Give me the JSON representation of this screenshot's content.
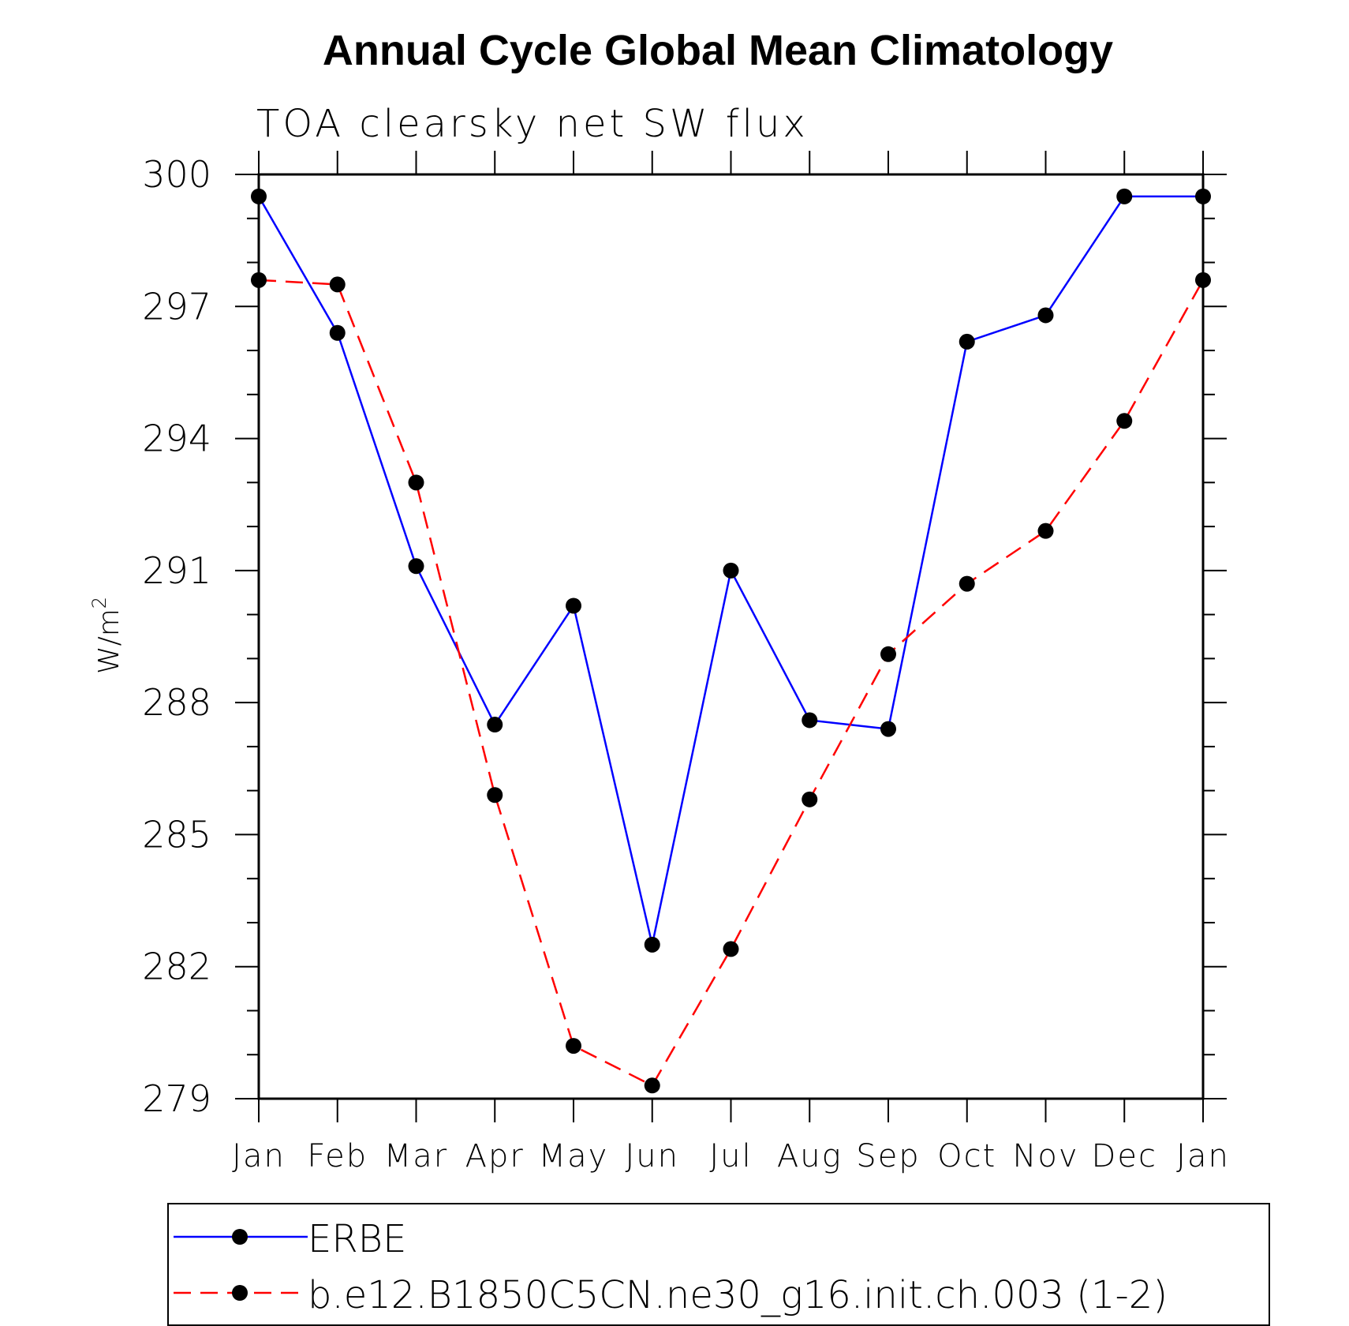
{
  "chart_data": {
    "type": "line",
    "title": "Annual Cycle Global Mean Climatology",
    "subtitle": "TOA clearsky net SW flux",
    "ylabel": "W/m",
    "ylabel_superscript": "2",
    "xlabel": "",
    "categories": [
      "Jan",
      "Feb",
      "Mar",
      "Apr",
      "May",
      "Jun",
      "Jul",
      "Aug",
      "Sep",
      "Oct",
      "Nov",
      "Dec",
      "Jan"
    ],
    "ylim": [
      279,
      300
    ],
    "yticks": [
      279,
      282,
      285,
      288,
      291,
      294,
      297,
      300
    ],
    "series": [
      {
        "name": "ERBE",
        "color": "#0000ff",
        "dash": "solid",
        "values": [
          299.5,
          296.4,
          291.1,
          287.5,
          290.2,
          282.5,
          291.0,
          287.6,
          287.4,
          296.2,
          296.8,
          299.5,
          299.5
        ]
      },
      {
        "name": "b.e12.B1850C5CN.ne30_g16.init.ch.003 (1-2)",
        "color": "#ff0000",
        "dash": "dashed",
        "values": [
          297.6,
          297.5,
          293.0,
          285.9,
          280.2,
          279.3,
          282.4,
          285.8,
          289.1,
          290.7,
          291.9,
          294.4,
          297.6
        ]
      }
    ],
    "legend_position": "bottom"
  }
}
